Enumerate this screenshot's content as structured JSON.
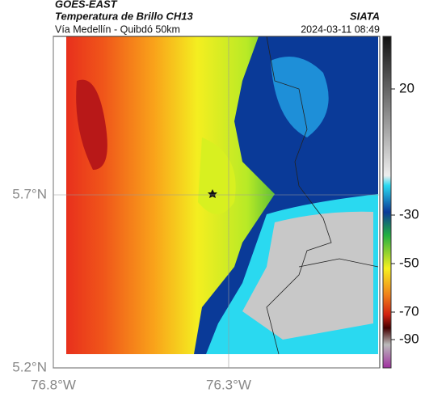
{
  "header": {
    "satellite": "GOES-EAST",
    "title": "Temperatura de Brillo CH13",
    "source": "SIATA",
    "subtitle": "Vía Medellín - Quibdó 50km",
    "datetime": "2024-03-11 08:49"
  },
  "axes": {
    "lat_ticks": [
      {
        "value": 5.7,
        "label": "5.7°N"
      },
      {
        "value": 5.2,
        "label": "5.2°N"
      }
    ],
    "lon_ticks": [
      {
        "value": -76.8,
        "label": "76.8°W"
      },
      {
        "value": -76.3,
        "label": "76.3°W"
      }
    ]
  },
  "colorbar": {
    "ticks": [
      20,
      -30,
      -50,
      -70,
      -90
    ]
  }
}
